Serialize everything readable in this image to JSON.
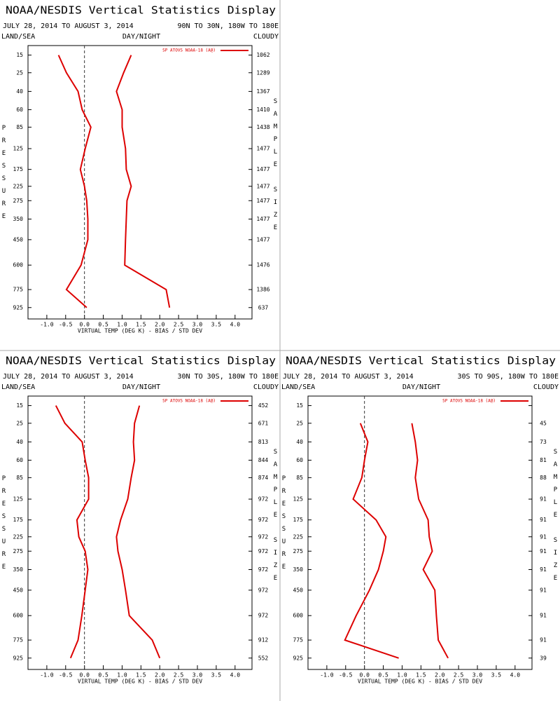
{
  "chart_data": [
    {
      "type": "line",
      "title": "NOAA/NESDIS Vertical Statistics Display",
      "subtitle": "JULY 28, 2014 TO AUGUST 3, 2014",
      "region": "90N TO 30N, 180W TO 180E",
      "land_sea": "LAND/SEA",
      "day_night": "DAY/NIGHT",
      "cloud": "CLOUDY",
      "legend": "SP ATOVS NOAA-18 (A@)",
      "legend_position": "upper right",
      "y_label": "PRESSURE",
      "y2_label": "SAMPLE SIZE",
      "x_label": "VIRTUAL TEMP (DEG K) - BIAS / STD DEV",
      "y": [
        15,
        25,
        40,
        60,
        85,
        125,
        175,
        225,
        275,
        350,
        450,
        600,
        775,
        925
      ],
      "ylim": [
        11,
        1030
      ],
      "yticks": [
        15,
        25,
        40,
        60,
        85,
        125,
        175,
        225,
        275,
        350,
        450,
        600,
        775,
        925
      ],
      "xlim": [
        -1.5,
        4.45
      ],
      "xticks": [
        {
          "value": -1,
          "label": "-1.0"
        },
        {
          "value": -0.5,
          "label": "-0.5"
        },
        {
          "value": 0,
          "label": "0.0"
        },
        {
          "value": 0.5,
          "label": "0.5"
        },
        {
          "value": 1,
          "label": "1.0"
        },
        {
          "value": 1.5,
          "label": "1.5"
        },
        {
          "value": 2,
          "label": "2.0"
        },
        {
          "value": 2.5,
          "label": "2.5"
        },
        {
          "value": 3,
          "label": "3.0"
        },
        {
          "value": 3.5,
          "label": "3.5"
        },
        {
          "value": 4,
          "label": "4.0"
        }
      ],
      "zero_line": 0,
      "series": [
        {
          "color": "#dd0000",
          "values": [
            -0.69,
            -0.48,
            -0.17,
            -0.06,
            0.17,
            0.02,
            -0.11,
            0,
            0.06,
            0.09,
            0.09,
            -0.09,
            -0.48,
            0.06
          ]
        },
        {
          "color": "#dd0000",
          "values": [
            1.24,
            1.04,
            0.85,
            1.0,
            1.0,
            1.09,
            1.11,
            1.24,
            1.13,
            1.11,
            1.09,
            1.07,
            2.17,
            2.26
          ]
        }
      ],
      "sample_size": [
        1062,
        1289,
        1367,
        1410,
        1438,
        1477,
        1477,
        1477,
        1477,
        1477,
        1477,
        1476,
        1386,
        637
      ]
    },
    {
      "type": "line",
      "title": "NOAA/NESDIS Vertical Statistics Display",
      "subtitle": "JULY 28, 2014 TO AUGUST 3, 2014",
      "region": "30N TO 30S, 180W TO 180E",
      "land_sea": "LAND/SEA",
      "day_night": "DAY/NIGHT",
      "cloud": "CLOUDY",
      "legend": "SP ATOVS NOAA-18 (A@)",
      "legend_position": "upper right",
      "y_label": "PRESSURE",
      "y2_label": "SAMPLE SIZE",
      "x_label": "VIRTUAL TEMP (DEG K) - BIAS / STD DEV",
      "y": [
        15,
        25,
        40,
        60,
        85,
        125,
        175,
        225,
        275,
        350,
        450,
        600,
        775,
        925
      ],
      "ylim": [
        11,
        1030
      ],
      "yticks": [
        15,
        25,
        40,
        60,
        85,
        125,
        175,
        225,
        275,
        350,
        450,
        600,
        775,
        925
      ],
      "xlim": [
        -1.5,
        4.45
      ],
      "xticks": [
        {
          "value": -1,
          "label": "-1.0"
        },
        {
          "value": -0.5,
          "label": "-0.5"
        },
        {
          "value": 0,
          "label": "0.0"
        },
        {
          "value": 0.5,
          "label": "0.5"
        },
        {
          "value": 1,
          "label": "1.0"
        },
        {
          "value": 1.5,
          "label": "1.5"
        },
        {
          "value": 2,
          "label": "2.0"
        },
        {
          "value": 2.5,
          "label": "2.5"
        },
        {
          "value": 3,
          "label": "3.0"
        },
        {
          "value": 3.5,
          "label": "3.5"
        },
        {
          "value": 4,
          "label": "4.0"
        }
      ],
      "zero_line": 0,
      "series": [
        {
          "color": "#dd0000",
          "values": [
            -0.76,
            -0.52,
            -0.06,
            0.02,
            0.11,
            0.11,
            -0.2,
            -0.15,
            0.02,
            0.09,
            0.02,
            -0.07,
            -0.17,
            -0.37
          ]
        },
        {
          "color": "#dd0000",
          "values": [
            1.46,
            1.33,
            1.3,
            1.33,
            1.24,
            1.15,
            0.96,
            0.85,
            0.89,
            1.0,
            1.09,
            1.19,
            1.8,
            2.0
          ]
        }
      ],
      "sample_size": [
        452,
        671,
        813,
        844,
        874,
        972,
        972,
        972,
        972,
        972,
        972,
        972,
        912,
        552
      ]
    },
    {
      "type": "line",
      "title": "NOAA/NESDIS Vertical Statistics Display",
      "subtitle": "JULY 28, 2014 TO AUGUST 3, 2014",
      "region": "30S TO 90S, 180W TO 180E",
      "land_sea": "LAND/SEA",
      "day_night": "DAY/NIGHT",
      "cloud": "CLOUDY",
      "legend": "SP ATOVS NOAA-18 (A@)",
      "legend_position": "upper right",
      "y_label": "PRESSURE",
      "y2_label": "SAMPLE SIZE",
      "x_label": "VIRTUAL TEMP (DEG K) - BIAS / STD DEV",
      "y": [
        15,
        25,
        40,
        60,
        85,
        125,
        175,
        225,
        275,
        350,
        450,
        600,
        775,
        925
      ],
      "ylim": [
        11,
        1030
      ],
      "yticks": [
        15,
        25,
        40,
        60,
        85,
        125,
        175,
        225,
        275,
        350,
        450,
        600,
        775,
        925
      ],
      "xlim": [
        -1.5,
        4.45
      ],
      "xticks": [
        {
          "value": -1,
          "label": "-1.0"
        },
        {
          "value": -0.5,
          "label": "-0.5"
        },
        {
          "value": 0,
          "label": "0.0"
        },
        {
          "value": 0.5,
          "label": "0.5"
        },
        {
          "value": 1,
          "label": "1.0"
        },
        {
          "value": 1.5,
          "label": "1.5"
        },
        {
          "value": 2,
          "label": "2.0"
        },
        {
          "value": 2.5,
          "label": "2.5"
        },
        {
          "value": 3,
          "label": "3.0"
        },
        {
          "value": 3.5,
          "label": "3.5"
        },
        {
          "value": 4,
          "label": "4.0"
        }
      ],
      "zero_line": 0,
      "series": [
        {
          "color": "#dd0000",
          "values": [
            null,
            -0.11,
            0.09,
            0,
            -0.07,
            -0.3,
            0.31,
            0.57,
            0.5,
            0.37,
            0.13,
            -0.22,
            -0.52,
            0.91
          ]
        },
        {
          "color": "#dd0000",
          "values": [
            null,
            1.26,
            1.35,
            1.41,
            1.35,
            1.44,
            1.69,
            1.72,
            1.8,
            1.56,
            1.87,
            1.91,
            1.96,
            2.22
          ]
        }
      ],
      "sample_size": [
        null,
        45,
        73,
        81,
        88,
        91,
        91,
        91,
        91,
        91,
        91,
        91,
        91,
        39
      ]
    }
  ]
}
